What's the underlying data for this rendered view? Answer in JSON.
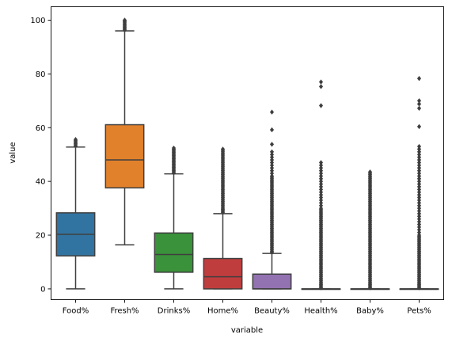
{
  "chart_data": {
    "type": "box",
    "xlabel": "variable",
    "ylabel": "value",
    "ylim": [
      -4,
      105
    ],
    "yticks": [
      0,
      20,
      40,
      60,
      80,
      100
    ],
    "colors": {
      "line": "#3f3f3f",
      "axes": "#000000",
      "background": "#ffffff"
    },
    "series": [
      {
        "category": "Food%",
        "color": "#3274a1",
        "min": 0,
        "q1": 12.3,
        "median": 20.3,
        "q3": 28.3,
        "max": 52.8,
        "outliers": [
          53.2,
          53.6,
          54.0,
          54.4,
          54.8,
          55.2,
          55.6
        ]
      },
      {
        "category": "Fresh%",
        "color": "#e1812c",
        "min": 16.4,
        "q1": 37.6,
        "median": 48.0,
        "q3": 61.1,
        "max": 96.0,
        "outliers": [
          96.3,
          96.6,
          97.0,
          97.4,
          97.8,
          98.2,
          98.6,
          99.0,
          99.4,
          99.8,
          100.0
        ]
      },
      {
        "category": "Drinks%",
        "color": "#3a923a",
        "min": 0,
        "q1": 6.2,
        "median": 12.8,
        "q3": 20.8,
        "max": 42.8,
        "outliers": [
          43.2,
          43.6,
          44.0,
          44.4,
          44.8,
          45.2,
          45.6,
          46.0,
          46.4,
          46.8,
          47.2,
          47.6,
          48.0,
          48.4,
          48.8,
          49.2,
          49.6,
          50.0,
          50.4,
          50.8,
          51.2,
          51.6,
          52.0,
          52.4
        ]
      },
      {
        "category": "Home%",
        "color": "#c03d3e",
        "min": 0,
        "q1": 0,
        "median": 4.5,
        "q3": 11.3,
        "max": 28.0,
        "outliers": [
          28.4,
          28.8,
          29.2,
          29.6,
          30.0,
          30.5,
          31.0,
          31.5,
          32.0,
          32.5,
          33.0,
          33.5,
          34.0,
          34.5,
          35.0,
          35.5,
          36.0,
          36.5,
          37.0,
          37.5,
          38.0,
          38.5,
          39.0,
          39.5,
          40.0,
          40.5,
          41.0,
          41.5,
          42.0,
          42.5,
          43.0,
          43.5,
          44.0,
          44.5,
          45.0,
          45.5,
          46.0,
          46.5,
          47.0,
          47.5,
          48.0,
          48.5,
          49.0,
          49.5,
          50.0,
          50.5,
          51.0,
          51.5,
          52.0
        ]
      },
      {
        "category": "Beauty%",
        "color": "#9372b2",
        "min": 0,
        "q1": 0,
        "median": 0,
        "q3": 5.5,
        "max": 13.2,
        "outliers": [
          13.6,
          14.0,
          14.5,
          15.0,
          15.5,
          16.0,
          16.5,
          17.0,
          17.5,
          18.0,
          18.5,
          19.0,
          19.5,
          20.0,
          20.5,
          21.0,
          21.5,
          22.0,
          22.5,
          23.0,
          23.5,
          24.0,
          24.5,
          25.0,
          25.5,
          26.0,
          26.5,
          27.0,
          27.5,
          28.0,
          28.5,
          29.0,
          29.5,
          30.0,
          30.5,
          31.0,
          31.5,
          32.0,
          32.5,
          33.0,
          33.5,
          34.0,
          34.5,
          35.0,
          35.5,
          36.0,
          36.5,
          37.0,
          37.5,
          38.0,
          38.5,
          39.0,
          39.5,
          40.0,
          40.5,
          41.0,
          41.5,
          42.0,
          43.0,
          44.0,
          45.0,
          46.0,
          47.0,
          48.0,
          49.0,
          50.0,
          51.0,
          53.8,
          59.2,
          65.8
        ]
      },
      {
        "category": "Health%",
        "color": "#845b53",
        "min": 0,
        "q1": 0,
        "median": 0,
        "q3": 0,
        "max": 0,
        "outliers": [
          0.4,
          0.8,
          1.2,
          1.6,
          2.0,
          2.5,
          3.0,
          3.5,
          4.0,
          4.5,
          5.0,
          5.5,
          6.0,
          6.5,
          7.0,
          7.5,
          8.0,
          8.5,
          9.0,
          9.5,
          10.0,
          10.5,
          11.0,
          11.5,
          12.0,
          12.5,
          13.0,
          13.5,
          14.0,
          14.5,
          15.0,
          15.5,
          16.0,
          16.5,
          17.0,
          17.5,
          18.0,
          18.5,
          19.0,
          19.5,
          20.0,
          20.5,
          21.0,
          21.5,
          22.0,
          22.5,
          23.0,
          23.5,
          24.0,
          24.5,
          25.0,
          25.5,
          26.0,
          26.5,
          27.0,
          27.5,
          28.0,
          28.5,
          29.0,
          29.5,
          30.0,
          31.0,
          32.0,
          33.0,
          34.0,
          35.0,
          36.0,
          37.0,
          38.0,
          39.0,
          40.0,
          41.0,
          42.0,
          43.0,
          44.0,
          45.0,
          46.0,
          47.0,
          68.2,
          75.3,
          77.0
        ]
      },
      {
        "category": "Baby%",
        "color": "#d684bd",
        "min": 0,
        "q1": 0,
        "median": 0,
        "q3": 0,
        "max": 0,
        "outliers": [
          0.4,
          0.8,
          1.2,
          1.6,
          2.0,
          2.5,
          3.0,
          3.5,
          4.0,
          4.5,
          5.0,
          5.5,
          6.0,
          6.5,
          7.0,
          7.5,
          8.0,
          8.5,
          9.0,
          9.5,
          10.0,
          10.5,
          11.0,
          11.5,
          12.0,
          12.5,
          13.0,
          13.5,
          14.0,
          14.5,
          15.0,
          15.5,
          16.0,
          16.5,
          17.0,
          17.5,
          18.0,
          18.5,
          19.0,
          19.5,
          20.0,
          20.5,
          21.0,
          21.5,
          22.0,
          22.5,
          23.0,
          23.5,
          24.0,
          24.5,
          25.0,
          25.5,
          26.0,
          26.5,
          27.0,
          27.5,
          28.0,
          28.5,
          29.0,
          29.5,
          30.0,
          30.5,
          31.0,
          31.5,
          32.0,
          32.5,
          33.0,
          33.5,
          34.0,
          34.5,
          35.0,
          35.5,
          36.0,
          36.5,
          37.0,
          37.5,
          38.0,
          38.5,
          39.0,
          39.5,
          40.0,
          40.5,
          41.0,
          41.5,
          42.0,
          42.5,
          43.0,
          43.5
        ]
      },
      {
        "category": "Pets%",
        "color": "#7f7f7f",
        "min": 0,
        "q1": 0,
        "median": 0,
        "q3": 0,
        "max": 0,
        "outliers": [
          0.4,
          0.8,
          1.2,
          1.6,
          2.0,
          2.5,
          3.0,
          3.5,
          4.0,
          4.5,
          5.0,
          5.5,
          6.0,
          6.5,
          7.0,
          7.5,
          8.0,
          8.5,
          9.0,
          9.5,
          10.0,
          10.5,
          11.0,
          11.5,
          12.0,
          12.5,
          13.0,
          13.5,
          14.0,
          14.5,
          15.0,
          15.5,
          16.0,
          16.5,
          17.0,
          17.5,
          18.0,
          18.5,
          19.0,
          19.5,
          20.0,
          21.0,
          22.0,
          23.0,
          24.0,
          25.0,
          26.0,
          27.0,
          28.0,
          29.0,
          30.0,
          31.0,
          32.0,
          33.0,
          34.0,
          35.0,
          36.0,
          37.0,
          38.0,
          39.0,
          40.0,
          41.0,
          42.0,
          43.0,
          44.0,
          45.0,
          46.0,
          47.0,
          48.0,
          49.0,
          50.0,
          51.0,
          52.0,
          53.0,
          60.4,
          67.2,
          68.8,
          70.0,
          78.3
        ]
      }
    ]
  }
}
